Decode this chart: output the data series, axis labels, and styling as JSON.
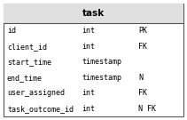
{
  "title": "task",
  "rows": [
    {
      "name": "id",
      "type": "int",
      "constraint": "PK"
    },
    {
      "name": "client_id",
      "type": "int",
      "constraint": "FK"
    },
    {
      "name": "start_time",
      "type": "timestamp",
      "constraint": ""
    },
    {
      "name": "end_time",
      "type": "timestamp",
      "constraint": "N"
    },
    {
      "name": "user_assigned",
      "type": "int",
      "constraint": "FK"
    },
    {
      "name": "task_outcome_id",
      "type": "int",
      "constraint": "N FK"
    }
  ],
  "header_bg": "#e0e0e0",
  "body_bg": "#ffffff",
  "border_color": "#555555",
  "text_color": "#000000",
  "title_fontsize": 7.5,
  "row_fontsize": 6.0,
  "fig_width": 2.11,
  "fig_height": 1.35,
  "dpi": 100
}
